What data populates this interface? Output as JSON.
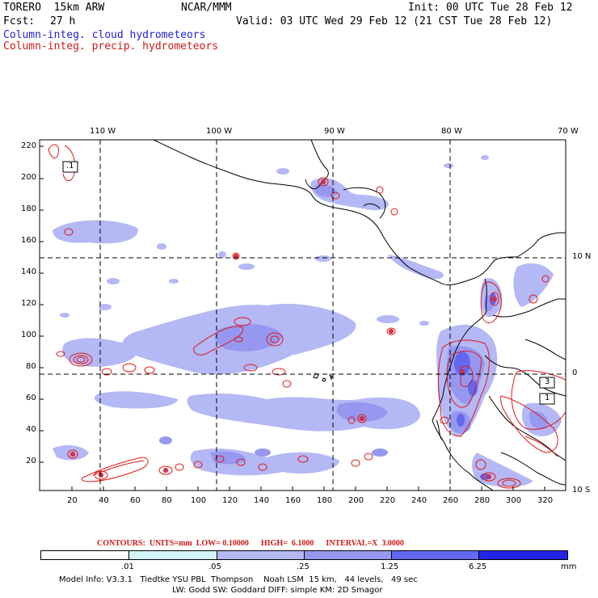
{
  "header": {
    "model": "TORERO  15km ARW",
    "org": "NCAR/MMM",
    "init": "Init: 00 UTC Tue 28 Feb 12",
    "fcst_label": "Fcst:",
    "fcst_hours": "27 h",
    "valid": "Valid: 03 UTC Wed 29 Feb 12 (21 CST Tue 28 Feb 12)",
    "legend_blue": "Column-integ. cloud hydrometeors",
    "legend_red": "Column-integ. precip. hydrometeors"
  },
  "axes": {
    "top_ticks": [
      "110 W",
      "100 W",
      "90 W",
      "80 W",
      "70 W"
    ],
    "right_ticks": [
      "10 N",
      "0",
      "10 S"
    ],
    "left_ticks": [
      "220",
      "200",
      "180",
      "160",
      "140",
      "120",
      "100",
      "80",
      "60",
      "40",
      "20"
    ],
    "bottom_ticks": [
      "20",
      "40",
      "60",
      "80",
      "100",
      "120",
      "140",
      "160",
      "180",
      "200",
      "220",
      "240",
      "260",
      "280",
      "300",
      "320"
    ]
  },
  "map_labels": {
    "box1": ".1",
    "box2": "3",
    "box3": "1"
  },
  "contours_text": "CONTOURS:  UNITS=mm  LOW= 0.10000      HIGH=  6.1000      INTERVAL=X  3.0000",
  "colorbar": {
    "labels": [
      ".01",
      ".05",
      ".25",
      "1.25",
      "6.25"
    ],
    "units": "mm",
    "colors": [
      "#ffffff",
      "#d2f4f6",
      "#b4b8f4",
      "#9698f0",
      "#6468f0",
      "#2424e8"
    ]
  },
  "model_info": {
    "line1": "Model Info: V3.3.1   Tiedtke YSU PBL  Thompson    Noah LSM  15 km,   44 levels,   49 sec",
    "line2": "LW: Godd SW: Goddard DIFF: simple KM: 2D Smagor"
  },
  "colors": {
    "cloud_light": "#b4b8f4",
    "cloud_mid": "#9698f0",
    "cloud_dark": "#6468f0",
    "precip_line": "#e01818",
    "coast": "#000000"
  }
}
